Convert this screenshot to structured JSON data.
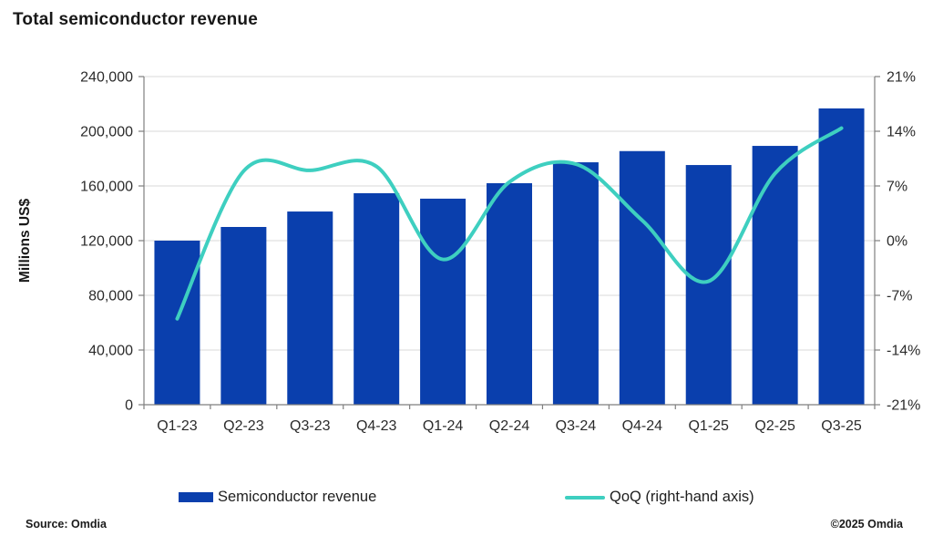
{
  "title": "Total semiconductor revenue",
  "footer": {
    "source": "Source: Omdia",
    "copyright": "©2025 Omdia"
  },
  "legend": {
    "bar_label": "Semiconductor revenue",
    "line_label": "QoQ (right-hand axis)"
  },
  "colors": {
    "bar": "#0a3fad",
    "line": "#3ecfc0",
    "grid": "#d9d9d9",
    "axis": "#7f7f7f",
    "tick_text": "#2b2b2b"
  },
  "chart_data": {
    "type": "bar",
    "title": "Total semiconductor revenue",
    "categories": [
      "Q1-23",
      "Q2-23",
      "Q3-23",
      "Q4-23",
      "Q1-24",
      "Q2-24",
      "Q3-24",
      "Q4-24",
      "Q1-25",
      "Q2-25",
      "Q3-25"
    ],
    "series": [
      {
        "name": "Semiconductor revenue",
        "type": "bar",
        "axis": "left",
        "values": [
          120000,
          130000,
          141300,
          154700,
          150700,
          162000,
          177300,
          185500,
          175300,
          189300,
          216700
        ]
      },
      {
        "name": "QoQ (right-hand axis)",
        "type": "line",
        "axis": "right",
        "values": [
          -10.0,
          8.9,
          9.0,
          9.5,
          -2.4,
          7.5,
          9.8,
          2.6,
          -5.2,
          8.6,
          14.4
        ]
      }
    ],
    "left_axis": {
      "title": "Millions US$",
      "min": 0,
      "max": 240000,
      "ticks": [
        {
          "label": "0",
          "value": 0
        },
        {
          "label": "40,000",
          "value": 40000
        },
        {
          "label": "80,000",
          "value": 80000
        },
        {
          "label": "120,000",
          "value": 120000
        },
        {
          "label": "160,000",
          "value": 160000
        },
        {
          "label": "200,000",
          "value": 200000
        },
        {
          "label": "240,000",
          "value": 240000
        }
      ]
    },
    "right_axis": {
      "title": "",
      "min": -21,
      "max": 21,
      "ticks": [
        {
          "label": "-21%",
          "value": -21
        },
        {
          "label": "-14%",
          "value": -14
        },
        {
          "label": "-7%",
          "value": -7
        },
        {
          "label": "0%",
          "value": 0
        },
        {
          "label": "7%",
          "value": 7
        },
        {
          "label": "14%",
          "value": 14
        },
        {
          "label": "21%",
          "value": 21
        }
      ]
    },
    "grid": true,
    "legend_position": "bottom"
  }
}
